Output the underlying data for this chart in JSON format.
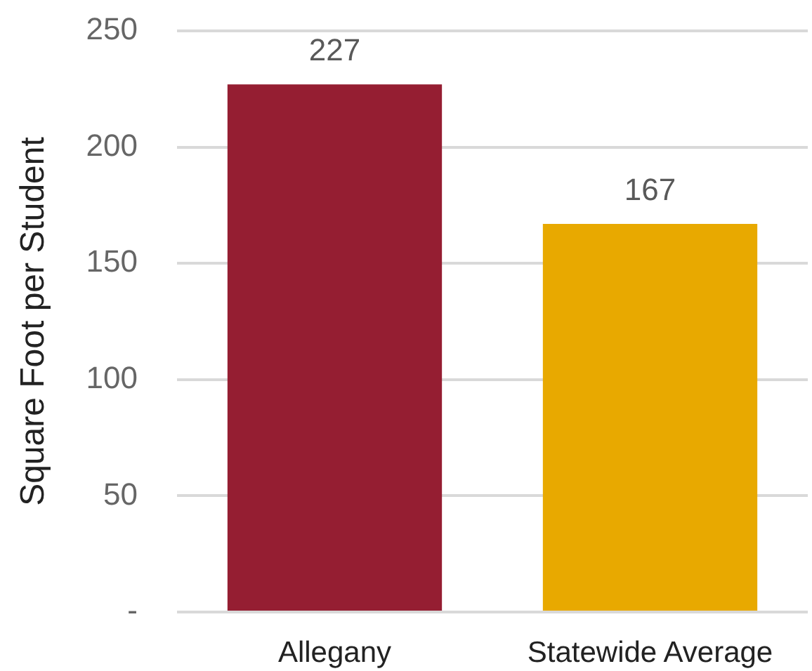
{
  "chart_data": {
    "type": "bar",
    "ylabel": "Square Foot per Student",
    "categories": [
      "Allegany",
      "Statewide Average"
    ],
    "values": [
      227,
      167
    ],
    "colors": [
      "#951e32",
      "#e8a900"
    ],
    "ylim": [
      0,
      250
    ],
    "yticks": [
      {
        "value": 0,
        "label": "-"
      },
      50,
      100,
      150,
      200,
      250
    ],
    "grid": "y",
    "data_labels": true,
    "legend": false
  }
}
